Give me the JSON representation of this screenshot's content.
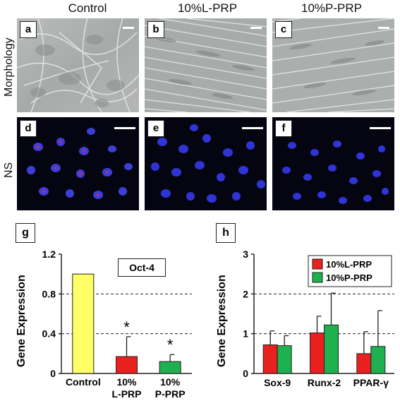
{
  "columns": [
    "Control",
    "10%L-PRP",
    "10%P-PRP"
  ],
  "rows": [
    "Morphology",
    "NS"
  ],
  "panels": {
    "top": [
      "a",
      "b",
      "c"
    ],
    "bottom": [
      "d",
      "e",
      "f"
    ]
  },
  "chart_data": [
    {
      "type": "bar",
      "panel_label": "g",
      "title": "Oct-4",
      "ylabel": "Gene Expression",
      "xlabel": "",
      "categories": [
        "Control",
        "10%\nL-PRP",
        "10%\nP-PRP"
      ],
      "category_lines": [
        [
          "Control"
        ],
        [
          "10%",
          "L-PRP"
        ],
        [
          "10%",
          "P-PRP"
        ]
      ],
      "values": [
        1.0,
        0.17,
        0.12
      ],
      "errors": [
        0,
        0.2,
        0.07
      ],
      "colors": [
        "#ffff66",
        "#e8201e",
        "#1fb050"
      ],
      "significance": [
        "",
        "*",
        "*"
      ],
      "ylim": [
        0,
        1.2
      ],
      "yticks": [
        "0",
        "0.4",
        "0.8",
        "1.2"
      ],
      "ytick_values": [
        0,
        0.4,
        0.8,
        1.2
      ],
      "grid": [
        0.4,
        0.8
      ]
    },
    {
      "type": "bar",
      "panel_label": "h",
      "title": "",
      "ylabel": "Gene Expression",
      "xlabel": "",
      "categories": [
        "Sox-9",
        "Runx-2",
        "PPAR-γ"
      ],
      "series": [
        {
          "name": "10%L-PRP",
          "values": [
            0.72,
            1.02,
            0.5
          ],
          "errors": [
            0.35,
            0.42,
            0.55
          ],
          "color": "#e8201e"
        },
        {
          "name": "10%P-PRP",
          "values": [
            0.7,
            1.22,
            0.68
          ],
          "errors": [
            0.25,
            0.8,
            0.9
          ],
          "color": "#1fb050"
        }
      ],
      "ylim": [
        0,
        3
      ],
      "yticks": [
        "0",
        "1",
        "2",
        "3"
      ],
      "ytick_values": [
        0,
        1,
        2,
        3
      ],
      "grid": [
        1,
        2
      ],
      "legend_position": "top-right"
    }
  ]
}
